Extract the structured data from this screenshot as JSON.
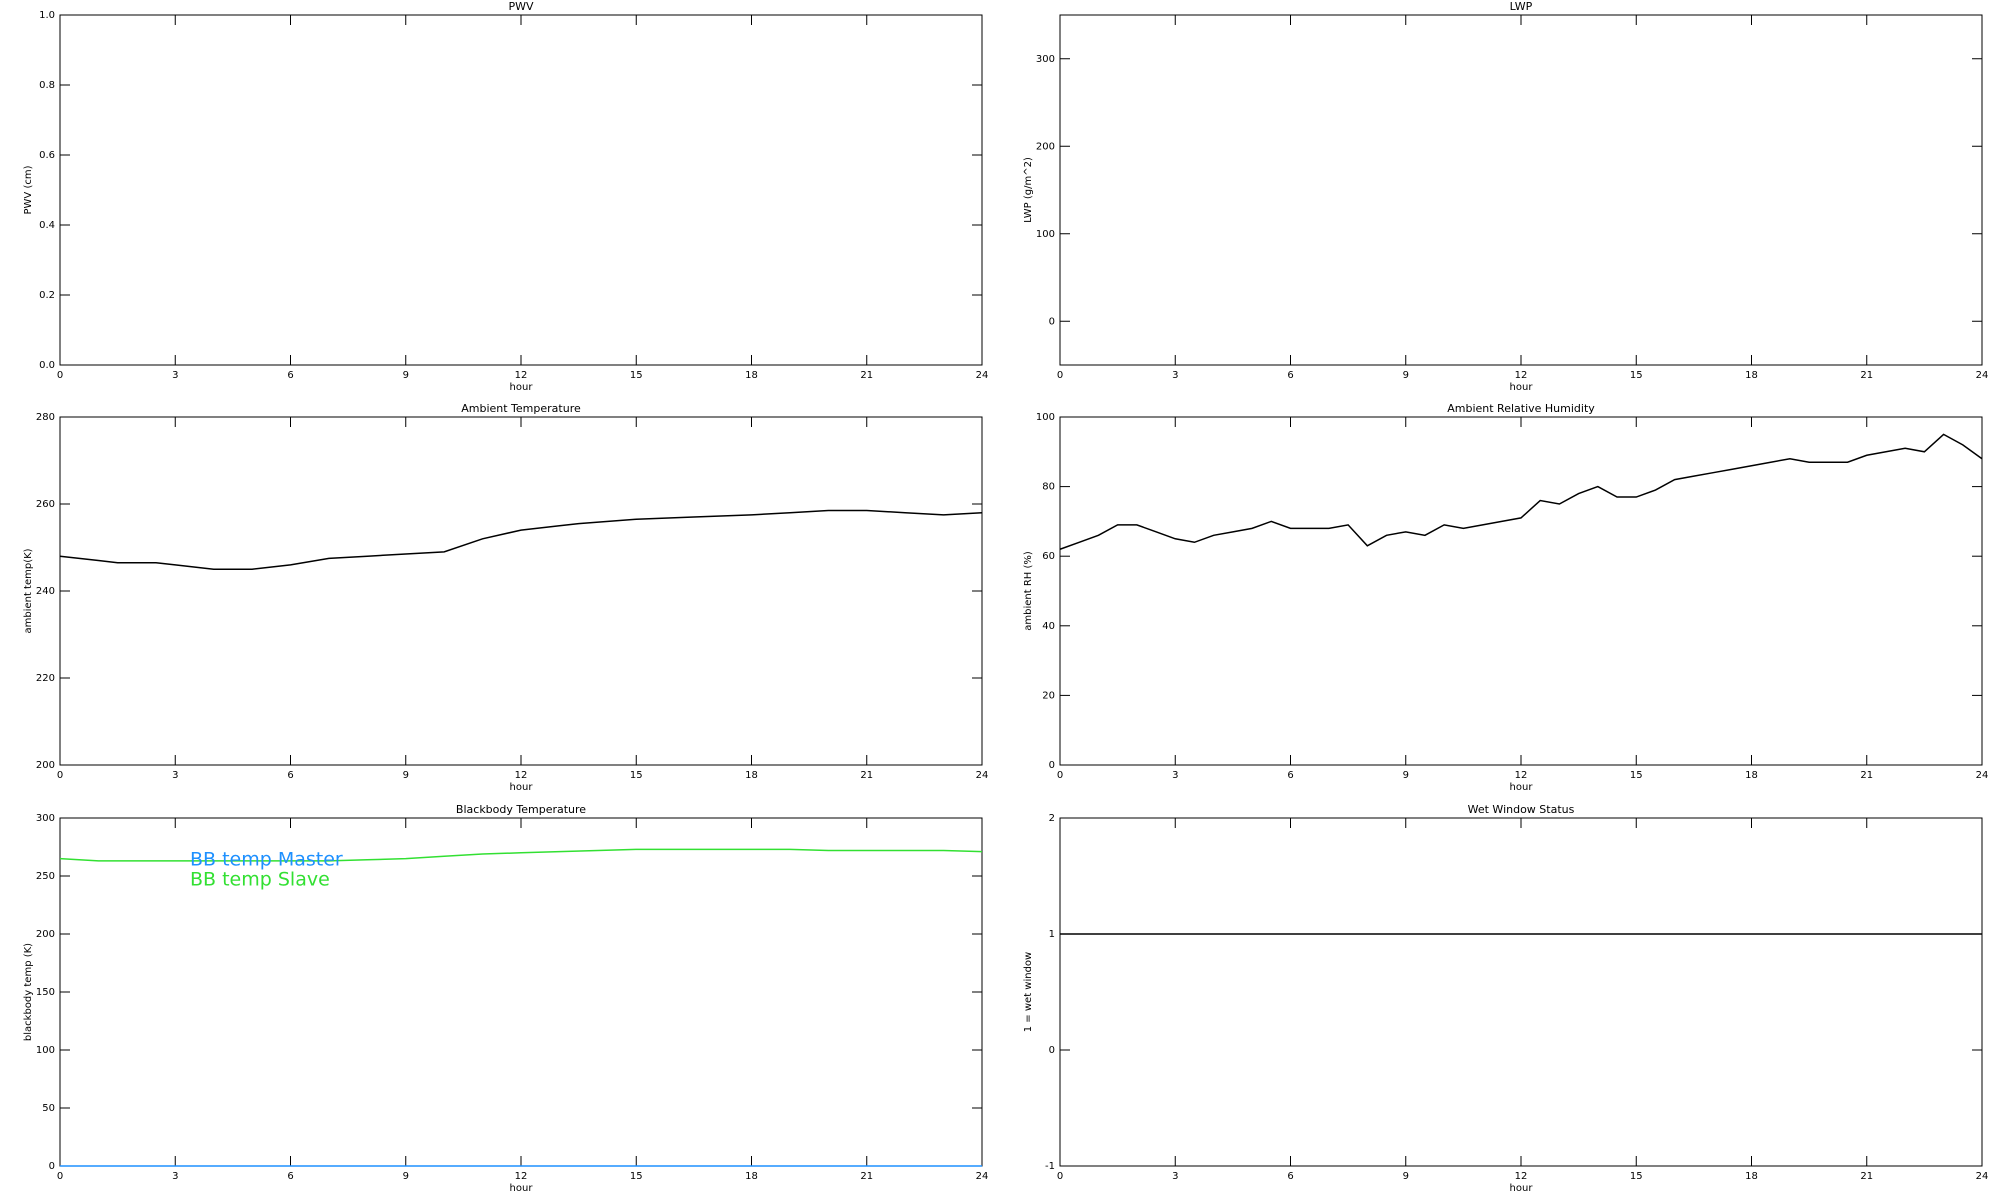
{
  "chart_data": [
    {
      "type": "line",
      "title": "PWV",
      "x_label": "hour",
      "y_label": "PWV (cm)",
      "xlim": [
        0,
        24
      ],
      "xticks": [
        0,
        3,
        6,
        9,
        12,
        15,
        18,
        21,
        24
      ],
      "ylim": [
        0,
        1
      ],
      "yticks": [
        {
          "value": 0,
          "label": "0.0"
        },
        0.2,
        0.4,
        0.6,
        0.8,
        {
          "value": 1,
          "label": "1.0"
        }
      ],
      "series": []
    },
    {
      "type": "line",
      "title": "LWP",
      "x_label": "hour",
      "y_label": "LWP (g/m^2)",
      "xlim": [
        0,
        24
      ],
      "xticks": [
        0,
        3,
        6,
        9,
        12,
        15,
        18,
        21,
        24
      ],
      "ylim": [
        -50,
        350
      ],
      "yticks": [
        0,
        100,
        200,
        300
      ],
      "series": []
    },
    {
      "type": "line",
      "title": "Ambient Temperature",
      "x_label": "hour",
      "y_label": "ambient temp(K)",
      "xlim": [
        0,
        24
      ],
      "xticks": [
        0,
        3,
        6,
        9,
        12,
        15,
        18,
        21,
        24
      ],
      "ylim": [
        200,
        280
      ],
      "yticks": [
        200,
        220,
        240,
        260,
        280
      ],
      "x": [
        0,
        1,
        1.5,
        2.5,
        3,
        4,
        5,
        6,
        7,
        8,
        9,
        10,
        11,
        12,
        13,
        13.5,
        15,
        16.5,
        18,
        19,
        20,
        21,
        22,
        23,
        24
      ],
      "series": [
        {
          "color": "#000000",
          "values": [
            248,
            247,
            246.5,
            246.5,
            246,
            245,
            245,
            246,
            247.5,
            248,
            248.5,
            249,
            252,
            254,
            255,
            255.5,
            256.5,
            257,
            257.5,
            258,
            258.5,
            258.5,
            258,
            257.5,
            258
          ]
        }
      ]
    },
    {
      "type": "line",
      "title": "Ambient Relative Humidity",
      "x_label": "hour",
      "y_label": "ambient RH (%)",
      "xlim": [
        0,
        24
      ],
      "xticks": [
        0,
        3,
        6,
        9,
        12,
        15,
        18,
        21,
        24
      ],
      "ylim": [
        0,
        100
      ],
      "yticks": [
        0,
        20,
        40,
        60,
        80,
        100
      ],
      "x": [
        0,
        0.5,
        1,
        1.5,
        2,
        2.5,
        3,
        3.5,
        4,
        4.5,
        5,
        5.5,
        6,
        7,
        7.5,
        8,
        8.5,
        9,
        9.5,
        10,
        10.5,
        11,
        11.5,
        12,
        12.5,
        13,
        13.5,
        14,
        14.5,
        15,
        15.5,
        16,
        16.5,
        17,
        17.5,
        18,
        18.5,
        19,
        19.5,
        20,
        20.5,
        21,
        21.5,
        22,
        22.5,
        23,
        23.5,
        24
      ],
      "series": [
        {
          "color": "#000000",
          "values": [
            62,
            64,
            66,
            69,
            69,
            67,
            65,
            64,
            66,
            67,
            68,
            70,
            68,
            68,
            69,
            63,
            66,
            67,
            66,
            69,
            68,
            69,
            70,
            71,
            76,
            75,
            78,
            80,
            77,
            77,
            79,
            82,
            83,
            84,
            85,
            86,
            87,
            88,
            87,
            87,
            87,
            89,
            90,
            91,
            90,
            95,
            92,
            88
          ]
        }
      ]
    },
    {
      "type": "line",
      "title": "Blackbody Temperature",
      "x_label": "hour",
      "y_label": "blackbody temp (K)",
      "xlim": [
        0,
        24
      ],
      "xticks": [
        0,
        3,
        6,
        9,
        12,
        15,
        18,
        21,
        24
      ],
      "ylim": [
        0,
        300
      ],
      "yticks": [
        0,
        50,
        100,
        150,
        200,
        250,
        300
      ],
      "legend": "upper left",
      "x": [
        0,
        1,
        2,
        3,
        4,
        5,
        6,
        7,
        8,
        9,
        10,
        11,
        12,
        13,
        14,
        15,
        16,
        17,
        18,
        19,
        20,
        21,
        22,
        23,
        24
      ],
      "series": [
        {
          "name": "BB temp Master",
          "color": "#1e90ff",
          "values": [
            0,
            0,
            0,
            0,
            0,
            0,
            0,
            0,
            0,
            0,
            0,
            0,
            0,
            0,
            0,
            0,
            0,
            0,
            0,
            0,
            0,
            0,
            0,
            0,
            0
          ]
        },
        {
          "name": "BB temp Slave",
          "color": "#32e032",
          "values": [
            265,
            263,
            263,
            263,
            263,
            263,
            263,
            263,
            264,
            265,
            267,
            269,
            270,
            271,
            272,
            273,
            273,
            273,
            273,
            273,
            272,
            272,
            272,
            272,
            271
          ]
        }
      ]
    },
    {
      "type": "line",
      "title": "Wet Window Status",
      "x_label": "hour",
      "y_label": "1 = wet window",
      "xlim": [
        0,
        24
      ],
      "xticks": [
        0,
        3,
        6,
        9,
        12,
        15,
        18,
        21,
        24
      ],
      "ylim": [
        -1,
        2
      ],
      "yticks": [
        -1,
        0,
        1,
        2
      ],
      "x": [
        0,
        24
      ],
      "series": [
        {
          "color": "#000000",
          "values": [
            1,
            1
          ]
        }
      ]
    }
  ]
}
